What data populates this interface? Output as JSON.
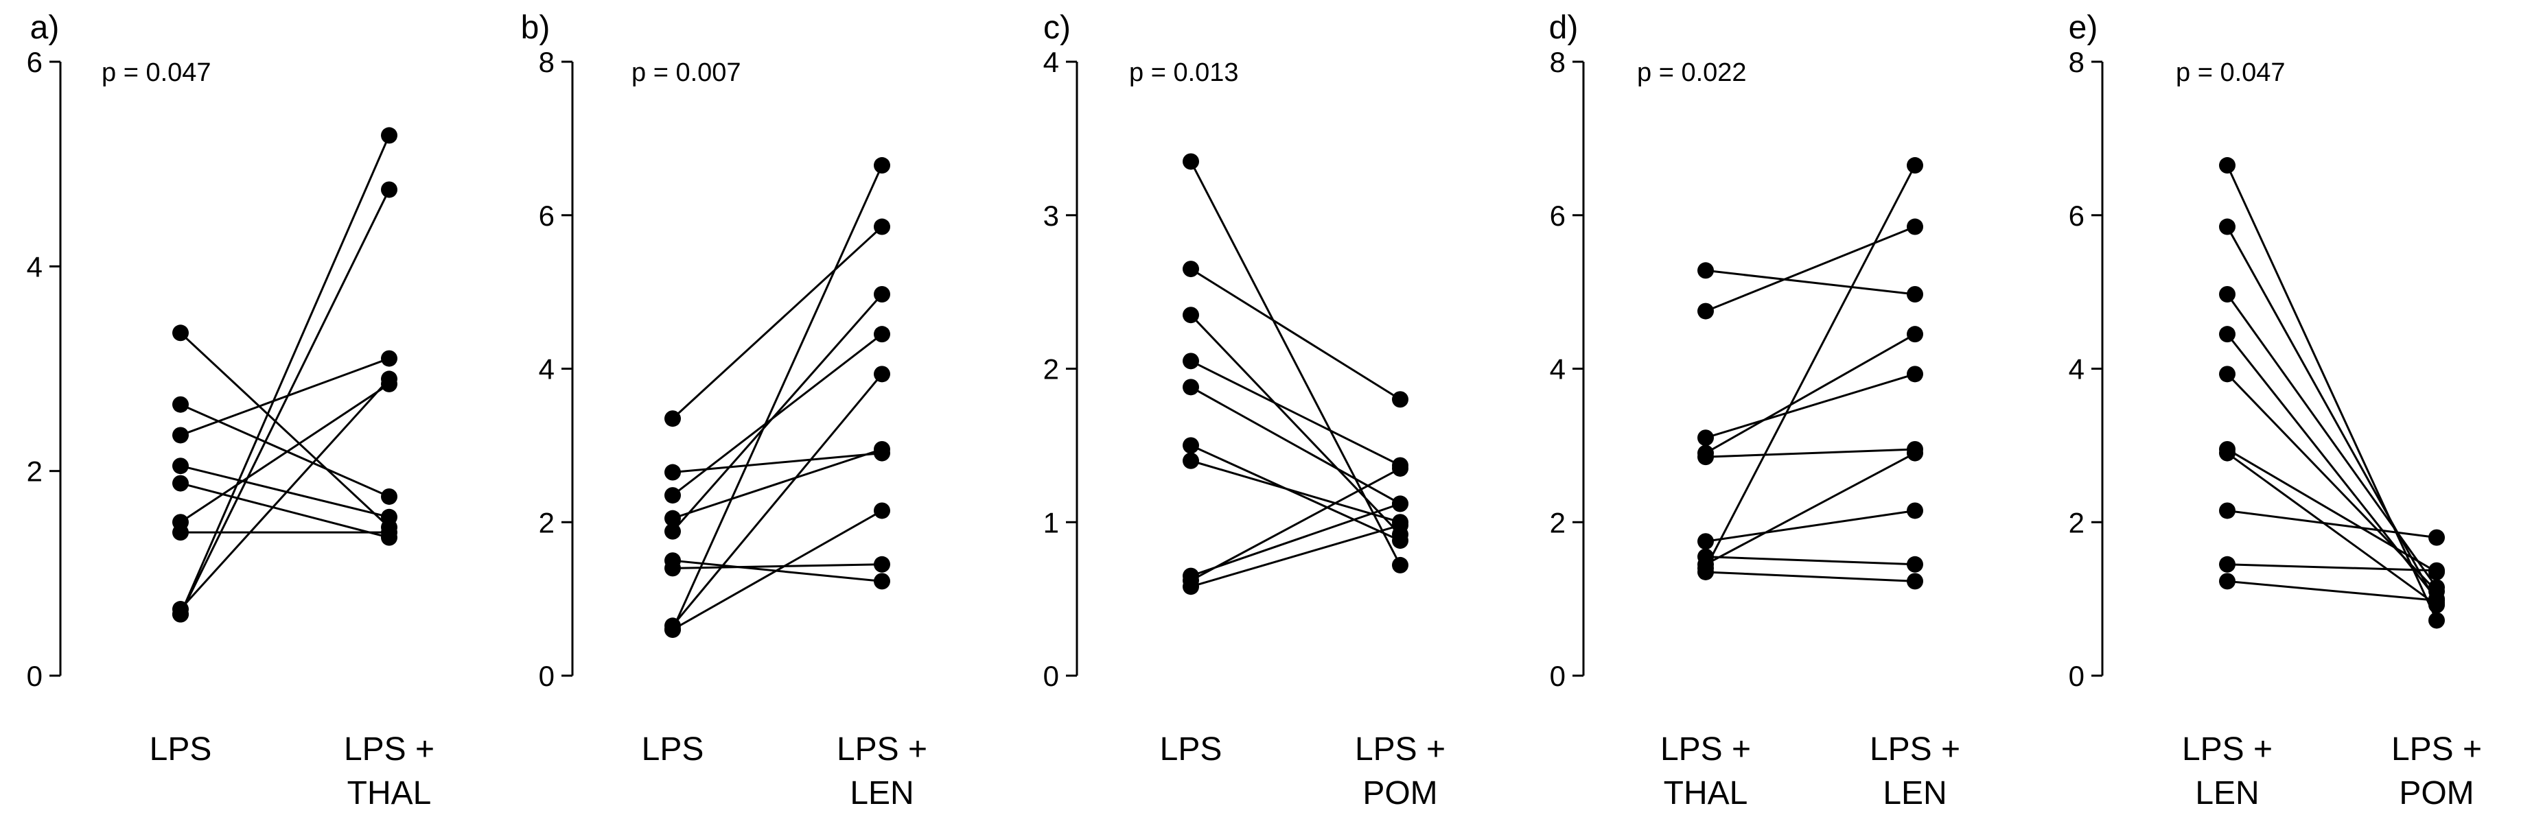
{
  "chart_data": [
    {
      "panel": "a)",
      "type": "paired-line",
      "annotation": "p = 0.047",
      "categories": [
        [
          "LPS"
        ],
        [
          "LPS +",
          "THAL"
        ]
      ],
      "ylim": [
        0,
        6
      ],
      "yticks": [
        0,
        2,
        4,
        6
      ],
      "ytick_labels": [
        "0",
        "2",
        "4",
        "6"
      ],
      "pairs": [
        [
          3.35,
          1.45
        ],
        [
          2.65,
          1.75
        ],
        [
          2.35,
          3.1
        ],
        [
          2.05,
          1.55
        ],
        [
          1.88,
          1.35
        ],
        [
          1.5,
          2.85
        ],
        [
          1.4,
          1.4
        ],
        [
          0.65,
          2.9
        ],
        [
          0.6,
          4.75
        ],
        [
          0.6,
          5.28
        ]
      ]
    },
    {
      "panel": "b)",
      "type": "paired-line",
      "annotation": "p = 0.007",
      "categories": [
        [
          "LPS"
        ],
        [
          "LPS +",
          "LEN"
        ]
      ],
      "ylim": [
        0,
        8
      ],
      "yticks": [
        0,
        2,
        4,
        6,
        8
      ],
      "ytick_labels": [
        "0",
        "2",
        "4",
        "6",
        "8"
      ],
      "pairs": [
        [
          3.35,
          5.85
        ],
        [
          2.65,
          2.9
        ],
        [
          2.35,
          4.45
        ],
        [
          2.05,
          2.95
        ],
        [
          1.88,
          4.97
        ],
        [
          1.5,
          1.23
        ],
        [
          1.4,
          1.45
        ],
        [
          0.65,
          3.93
        ],
        [
          0.6,
          6.65
        ],
        [
          0.6,
          2.15
        ]
      ]
    },
    {
      "panel": "c)",
      "type": "paired-line",
      "annotation": "p = 0.013",
      "categories": [
        [
          "LPS"
        ],
        [
          "LPS +",
          "POM"
        ]
      ],
      "ylim": [
        0,
        4
      ],
      "yticks": [
        0,
        1,
        2,
        3,
        4
      ],
      "ytick_labels": [
        "0",
        "1",
        "2",
        "3",
        "4"
      ],
      "pairs": [
        [
          3.35,
          0.72
        ],
        [
          2.65,
          1.8
        ],
        [
          2.35,
          0.92
        ],
        [
          2.05,
          1.37
        ],
        [
          1.88,
          1.12
        ],
        [
          1.5,
          0.88
        ],
        [
          1.4,
          1.0
        ],
        [
          0.65,
          1.12
        ],
        [
          0.62,
          1.35
        ],
        [
          0.58,
          0.98
        ]
      ]
    },
    {
      "panel": "d)",
      "type": "paired-line",
      "annotation": "p = 0.022",
      "categories": [
        [
          "LPS +",
          "THAL"
        ],
        [
          "LPS +",
          "LEN"
        ]
      ],
      "ylim": [
        0,
        8
      ],
      "yticks": [
        0,
        2,
        4,
        6,
        8
      ],
      "ytick_labels": [
        "0",
        "2",
        "4",
        "6",
        "8"
      ],
      "pairs": [
        [
          5.28,
          4.97
        ],
        [
          4.75,
          5.85
        ],
        [
          3.1,
          3.93
        ],
        [
          2.9,
          4.45
        ],
        [
          2.85,
          2.95
        ],
        [
          1.75,
          2.15
        ],
        [
          1.55,
          1.45
        ],
        [
          1.45,
          2.9
        ],
        [
          1.4,
          6.65
        ],
        [
          1.35,
          1.23
        ]
      ]
    },
    {
      "panel": "e)",
      "type": "paired-line",
      "annotation": "p = 0.047",
      "categories": [
        [
          "LPS +",
          "LEN"
        ],
        [
          "LPS +",
          "POM"
        ]
      ],
      "ylim": [
        0,
        8
      ],
      "yticks": [
        0,
        2,
        4,
        6,
        8
      ],
      "ytick_labels": [
        "0",
        "2",
        "4",
        "6",
        "8"
      ],
      "pairs": [
        [
          6.65,
          0.72
        ],
        [
          5.85,
          0.95
        ],
        [
          4.97,
          1.15
        ],
        [
          4.45,
          1.0
        ],
        [
          3.93,
          1.1
        ],
        [
          2.95,
          1.35
        ],
        [
          2.9,
          0.92
        ],
        [
          2.15,
          1.8
        ],
        [
          1.45,
          1.37
        ],
        [
          1.23,
          0.98
        ]
      ]
    }
  ]
}
